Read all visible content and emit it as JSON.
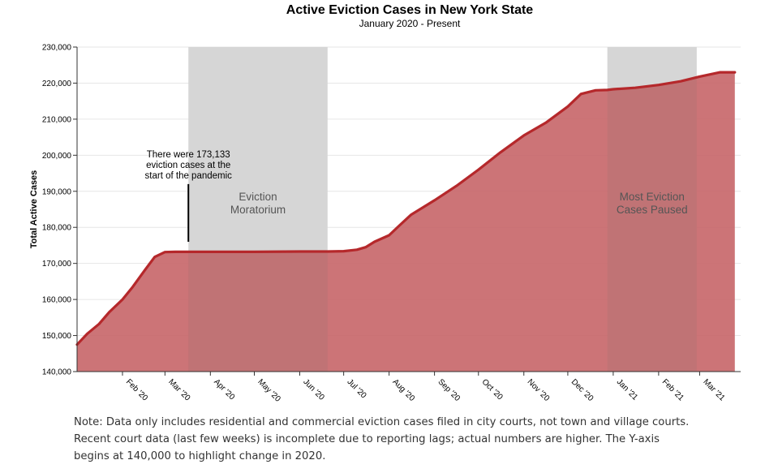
{
  "chart_data": {
    "type": "area",
    "title": "Active Eviction Cases in New York State",
    "subtitle": "January 2020 - Present",
    "ylabel": "Total Active Cases",
    "xlabel": "",
    "ylim": [
      140000,
      230000
    ],
    "y_ticks": [
      140000,
      150000,
      160000,
      170000,
      180000,
      190000,
      200000,
      210000,
      220000,
      230000
    ],
    "y_tick_labels": [
      "140,000",
      "150,000",
      "160,000",
      "170,000",
      "180,000",
      "190,000",
      "200,000",
      "210,000",
      "220,000",
      "230,000"
    ],
    "x_range": [
      "2020-01-01",
      "2021-03-29"
    ],
    "x_ticks": [
      "2020-02-01",
      "2020-03-01",
      "2020-04-01",
      "2020-05-01",
      "2020-06-01",
      "2020-07-01",
      "2020-08-01",
      "2020-09-01",
      "2020-10-01",
      "2020-11-01",
      "2020-12-01",
      "2021-01-01",
      "2021-02-01",
      "2021-03-01"
    ],
    "x_tick_labels": [
      "Feb '20",
      "Mar '20",
      "Apr '20",
      "May '20",
      "Jun '20",
      "Jul '20",
      "Aug '20",
      "Sep '20",
      "Oct '20",
      "Nov '20",
      "Dec '20",
      "Jan '21",
      "Feb '21",
      "Mar '21"
    ],
    "series": [
      {
        "x": [
          "2020-01-01",
          "2020-01-08",
          "2020-01-16",
          "2020-01-23",
          "2020-02-01",
          "2020-02-08",
          "2020-02-16",
          "2020-02-23",
          "2020-03-01",
          "2020-03-08",
          "2020-03-16",
          "2020-03-24",
          "2020-04-01",
          "2020-05-01",
          "2020-06-01",
          "2020-06-20",
          "2020-07-01",
          "2020-07-10",
          "2020-07-16",
          "2020-07-22",
          "2020-08-01",
          "2020-08-08",
          "2020-08-16",
          "2020-09-01",
          "2020-09-16",
          "2020-10-01",
          "2020-10-16",
          "2020-11-01",
          "2020-11-16",
          "2020-12-01",
          "2020-12-10",
          "2020-12-20",
          "2020-12-28",
          "2021-01-01",
          "2021-01-16",
          "2021-02-01",
          "2021-02-16",
          "2021-03-01",
          "2021-03-15",
          "2021-03-25"
        ],
        "values": [
          147500,
          150500,
          153200,
          156500,
          160000,
          163500,
          168000,
          171800,
          173133,
          173200,
          173200,
          173200,
          173200,
          173200,
          173300,
          173300,
          173400,
          173800,
          174500,
          176000,
          177800,
          180500,
          183500,
          187500,
          191500,
          196000,
          200800,
          205500,
          209000,
          213500,
          217000,
          218000,
          218100,
          218300,
          218700,
          219500,
          220500,
          221800,
          223000,
          223000
        ]
      }
    ],
    "shaded_periods": [
      {
        "start": "2020-03-17",
        "end": "2020-06-20",
        "label": [
          "Eviction",
          "Moratorium"
        ]
      },
      {
        "start": "2020-12-28",
        "end": "2021-02-27",
        "label": [
          "Most Eviction",
          "Cases Paused"
        ]
      }
    ],
    "annotation": {
      "date": "2020-03-17",
      "value_from": 176000,
      "value_to": 192000,
      "lines": [
        "There were 173,133",
        "eviction cases at the",
        "start of the pandemic"
      ]
    },
    "colors": {
      "area_fill": "#c8686b",
      "line": "#b5282b",
      "shade": "#e3e3e3",
      "grid": "#e6e6e6"
    },
    "grid": true
  },
  "note": "Note: Data only includes residential and commercial eviction cases filed in city courts, not town and village courts. Recent court data (last few weeks) is incomplete due to reporting lags; actual numbers are higher. The Y-axis begins at 140,000 to highlight change in 2020."
}
